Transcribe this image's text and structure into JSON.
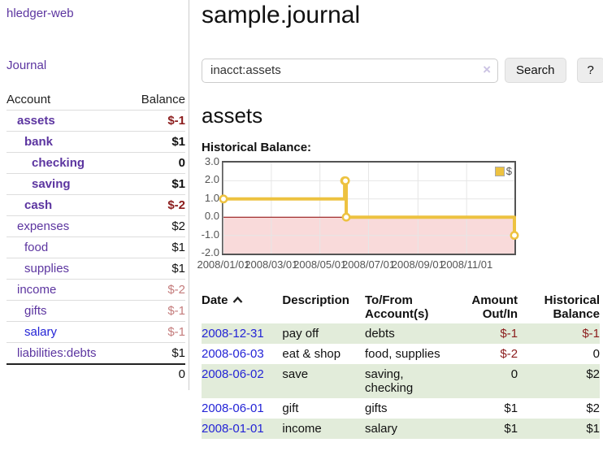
{
  "sidebar": {
    "brand": "hledger-web",
    "nav_journal": "Journal",
    "accounts_table": {
      "header_account": "Account",
      "header_balance": "Balance",
      "rows": [
        {
          "name": "assets",
          "level": 1,
          "bold": true,
          "balance": "$-1",
          "balance_class": "neg"
        },
        {
          "name": "bank",
          "level": 2,
          "bold": true,
          "balance": "$1",
          "balance_class": ""
        },
        {
          "name": "checking",
          "level": 3,
          "bold": true,
          "balance": "0",
          "balance_class": ""
        },
        {
          "name": "saving",
          "level": 3,
          "bold": true,
          "balance": "$1",
          "balance_class": ""
        },
        {
          "name": "cash",
          "level": 2,
          "bold": true,
          "balance": "$-2",
          "balance_class": "neg"
        },
        {
          "name": "expenses",
          "level": 1,
          "bold": false,
          "balance": "$2",
          "balance_class": ""
        },
        {
          "name": "food",
          "level": 2,
          "bold": false,
          "balance": "$1",
          "balance_class": ""
        },
        {
          "name": "supplies",
          "level": 2,
          "bold": false,
          "balance": "$1",
          "balance_class": ""
        },
        {
          "name": "income",
          "level": 1,
          "bold": false,
          "balance": "$-2",
          "balance_class": "negsoft"
        },
        {
          "name": "gifts",
          "level": 2,
          "bold": false,
          "balance": "$-1",
          "balance_class": "negsoft"
        },
        {
          "name": "salary",
          "level": 2,
          "bold": false,
          "blue": true,
          "balance": "$-1",
          "balance_class": "negsoft"
        },
        {
          "name": "liabilities:debts",
          "level": 1,
          "bold": false,
          "balance": "$1",
          "balance_class": ""
        }
      ],
      "total": "0"
    }
  },
  "main": {
    "title": "sample.journal",
    "search": {
      "value": "inacct:assets",
      "clear_symbol": "×",
      "button_label": "Search",
      "help_label": "?"
    },
    "account_heading": "assets",
    "chart_title": "Historical Balance:",
    "register": {
      "headers": {
        "date": {
          "l1": "Date",
          "l2": ""
        },
        "description": {
          "l1": "Description",
          "l2": ""
        },
        "accounts": {
          "l1": "To/From",
          "l2": "Account(s)"
        },
        "amount": {
          "l1": "Amount",
          "l2": "Out/In"
        },
        "balance": {
          "l1": "Historical",
          "l2": "Balance"
        }
      },
      "rows": [
        {
          "date": "2008-12-31",
          "description": "pay off",
          "accounts": "debts",
          "amount": "$-1",
          "amount_negative": true,
          "balance": "$-1",
          "balance_negative": true
        },
        {
          "date": "2008-06-03",
          "description": "eat & shop",
          "accounts": "food, supplies",
          "amount": "$-2",
          "amount_negative": true,
          "balance": "0",
          "balance_negative": false
        },
        {
          "date": "2008-06-02",
          "description": "save",
          "accounts": "saving, checking",
          "amount": "0",
          "amount_negative": false,
          "balance": "$2",
          "balance_negative": false
        },
        {
          "date": "2008-06-01",
          "description": "gift",
          "accounts": "gifts",
          "amount": "$1",
          "amount_negative": false,
          "balance": "$2",
          "balance_negative": false
        },
        {
          "date": "2008-01-01",
          "description": "income",
          "accounts": "salary",
          "amount": "$1",
          "amount_negative": false,
          "balance": "$1",
          "balance_negative": false
        }
      ]
    }
  },
  "chart_data": {
    "type": "line",
    "step": true,
    "title": "Historical Balance",
    "series": [
      {
        "name": "$",
        "color": "#EDC240",
        "points": [
          {
            "date": "2008-01-01",
            "value": 1
          },
          {
            "date": "2008-06-01",
            "value": 2
          },
          {
            "date": "2008-06-02",
            "value": 2
          },
          {
            "date": "2008-06-03",
            "value": 0
          },
          {
            "date": "2008-12-31",
            "value": -1
          }
        ]
      }
    ],
    "xrange": [
      "2008-01-01",
      "2008-12-31"
    ],
    "ylim": [
      -2,
      3
    ],
    "yticks": [
      {
        "v": 3,
        "label": "3.0"
      },
      {
        "v": 2,
        "label": "2.0"
      },
      {
        "v": 1,
        "label": "1.0"
      },
      {
        "v": 0,
        "label": "0.0"
      },
      {
        "v": -1,
        "label": "-1.0"
      },
      {
        "v": -2,
        "label": "-2.0"
      }
    ],
    "xticks": [
      {
        "date": "2008-01-01",
        "label": "2008/01/01"
      },
      {
        "date": "2008-03-01",
        "label": "2008/03/01"
      },
      {
        "date": "2008-05-01",
        "label": "2008/05/01"
      },
      {
        "date": "2008-07-01",
        "label": "2008/07/01"
      },
      {
        "date": "2008-09-01",
        "label": "2008/09/01"
      },
      {
        "date": "2008-11-01",
        "label": "2008/11/01"
      }
    ],
    "legend": {
      "label": "$",
      "swatch_color": "#EDC240"
    },
    "grid_color": "#e6e6e6",
    "negative_region_color": "#f9dada",
    "zero_line_color": "#8b0000",
    "axis_label_color": "#545454"
  },
  "colors": {
    "link_purple": "#5c35a0",
    "link_blue": "#2424d6",
    "negative_dark": "#8b1c1c",
    "negative_soft": "#c47c7c",
    "row_stripe_green": "#e2ecda",
    "chart_line": "#EDC240",
    "button_bg": "#ededed"
  }
}
